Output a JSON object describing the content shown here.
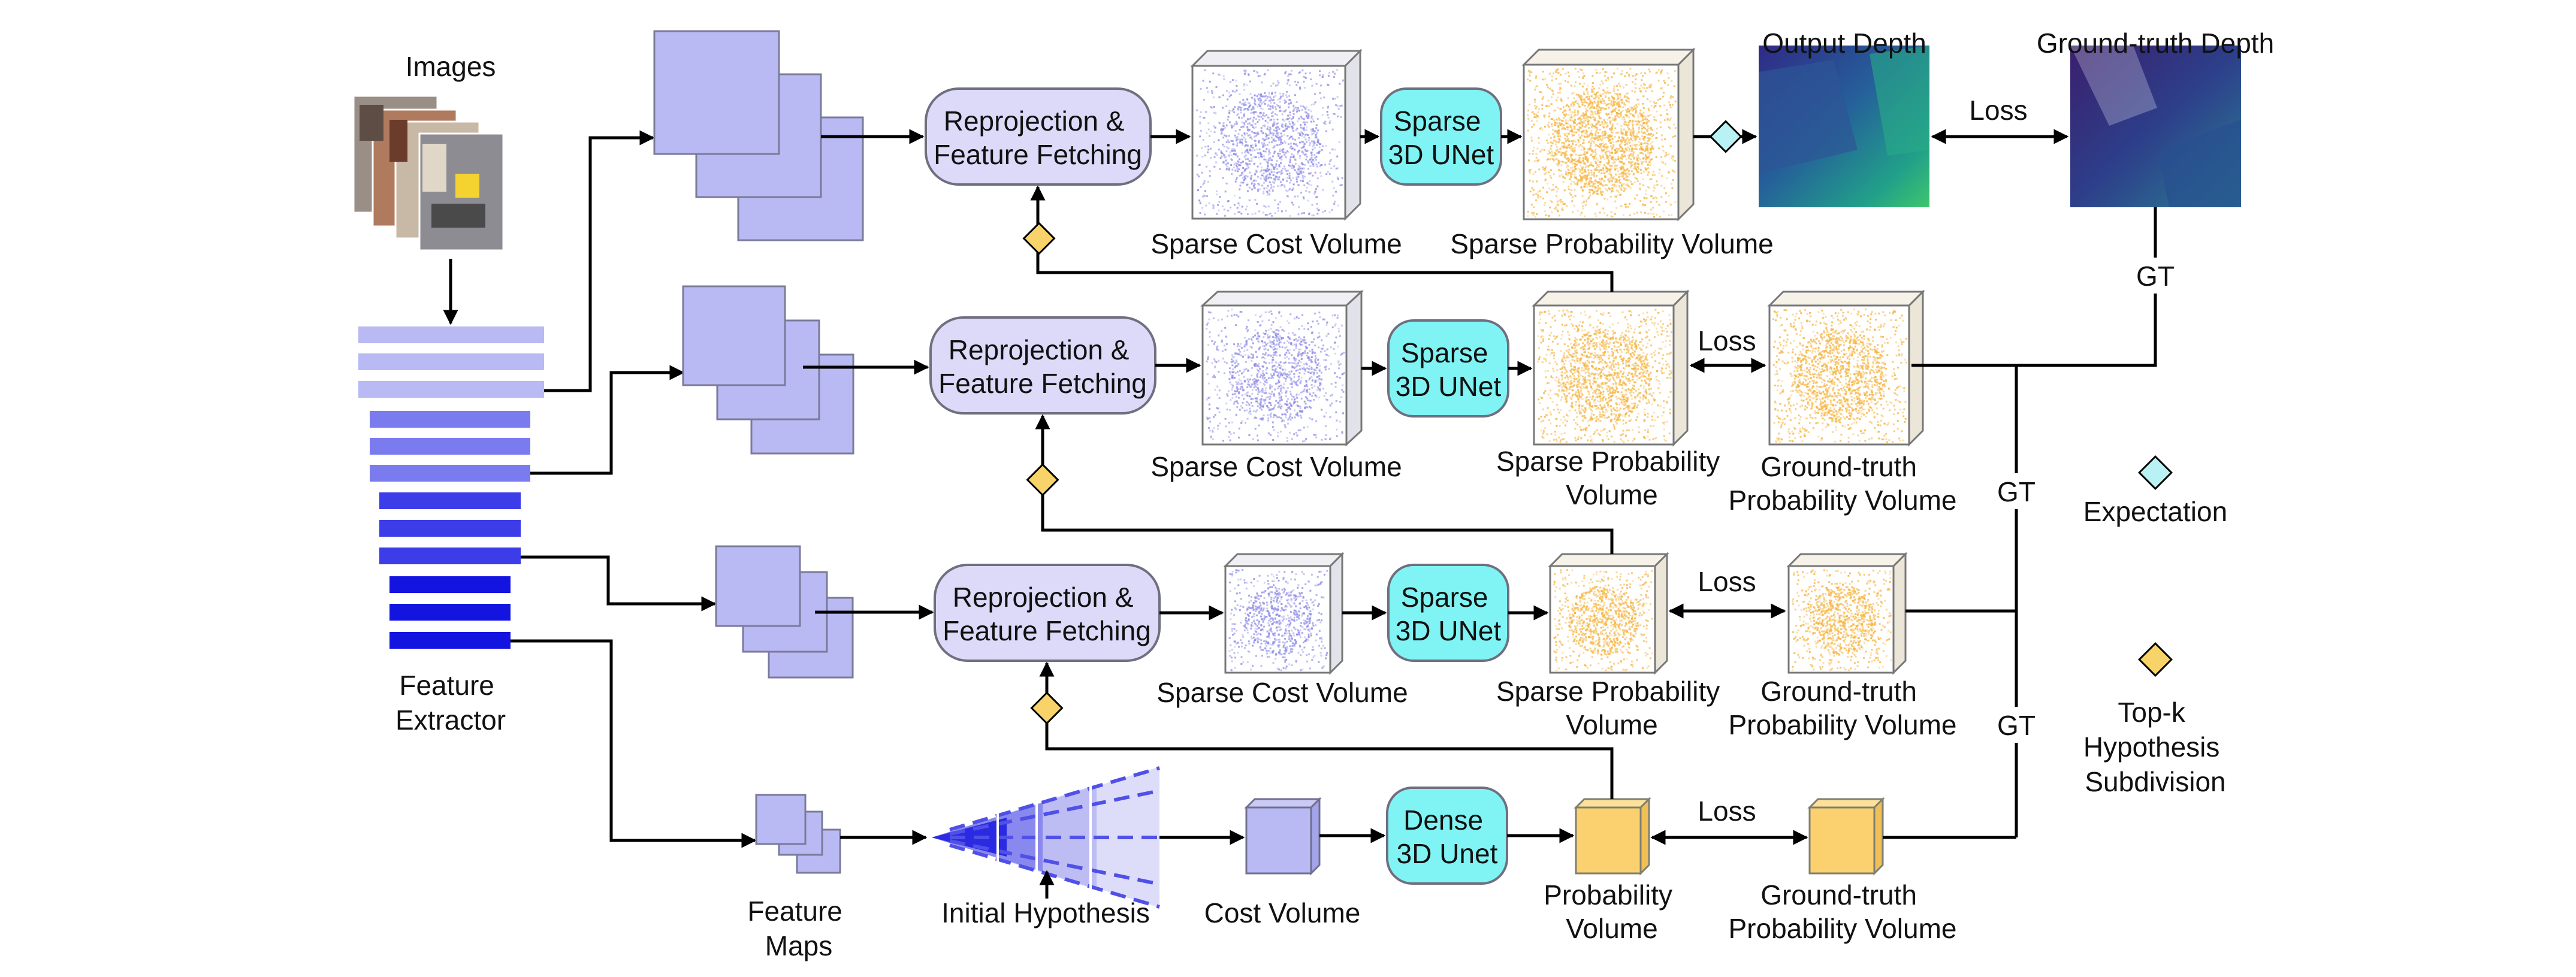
{
  "labels": {
    "images": "Images",
    "feature_extractor": [
      "Feature",
      "Extractor"
    ],
    "feature_maps": [
      "Feature",
      "Maps"
    ],
    "initial_hypothesis": "Initial Hypothesis",
    "cost_volume": "Cost Volume",
    "sparse_cost_volume": "Sparse Cost Volume",
    "sparse_probability_volume": "Sparse Probability Volume",
    "sparse_probability_volume_split": [
      "Sparse Probability",
      "Volume"
    ],
    "probability_volume": [
      "Probability",
      "Volume"
    ],
    "gt_probability_volume": [
      "Ground-truth",
      "Probability Volume"
    ],
    "output_depth": "Output Depth",
    "gt_depth": "Ground-truth Depth",
    "loss": "Loss",
    "gt": "GT"
  },
  "nodes": {
    "reprojection": [
      "Reprojection &",
      "Feature Fetching"
    ],
    "sparse_unet": [
      "Sparse",
      "3D UNet"
    ],
    "dense_unet": [
      "Dense",
      "3D Unet"
    ]
  },
  "legend": {
    "expectation": "Expectation",
    "topk": [
      "Top-k",
      "Hypothesis",
      "Subdivision"
    ]
  },
  "colors": {
    "feature_light": "#b9b9f4",
    "feature_mid": "#7b7bf0",
    "feature_dark": "#3c3ce8",
    "feature_darkest": "#1414e0",
    "cost_dots": "#8c8ce6",
    "prob_dots": "#f5b440",
    "prob_solid": "#fbd06f",
    "unet_fill": "#80f4f4",
    "node_fill": "#ddd9f8",
    "expectation_fill": "#b8f2f4",
    "topk_fill": "#f8d36a"
  }
}
